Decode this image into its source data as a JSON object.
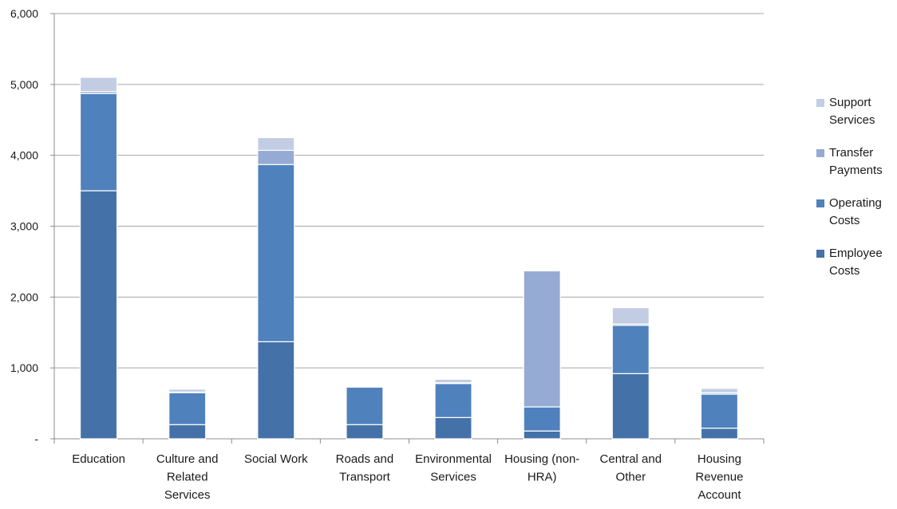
{
  "chart_data": {
    "type": "bar",
    "stacked": true,
    "categories": [
      "Education",
      "Culture and Related Services",
      "Social Work",
      "Roads and Transport",
      "Environmental Services",
      "Housing (non-HRA)",
      "Central and Other",
      "Housing Revenue Account"
    ],
    "category_lines": [
      [
        "Education"
      ],
      [
        "Culture and",
        "Related",
        "Services"
      ],
      [
        "Social Work"
      ],
      [
        "Roads and",
        "Transport"
      ],
      [
        "Environmental",
        "Services"
      ],
      [
        "Housing (non-",
        "HRA)"
      ],
      [
        "Central and",
        "Other"
      ],
      [
        "Housing",
        "Revenue",
        "Account"
      ]
    ],
    "series": [
      {
        "name": "Employee Costs",
        "color": "#4472a8",
        "values": [
          3500,
          200,
          1370,
          200,
          300,
          110,
          920,
          150
        ]
      },
      {
        "name": "Operating Costs",
        "color": "#4f81bd",
        "values": [
          1370,
          450,
          2500,
          530,
          480,
          340,
          680,
          480
        ]
      },
      {
        "name": "Transfer Payments",
        "color": "#95abd3",
        "values": [
          30,
          10,
          200,
          10,
          10,
          1920,
          20,
          20
        ]
      },
      {
        "name": "Support Services",
        "color": "#c2cde4",
        "values": [
          200,
          40,
          180,
          10,
          50,
          10,
          230,
          60
        ]
      }
    ],
    "legend_order": [
      "Support Services",
      "Transfer Payments",
      "Operating Costs",
      "Employee Costs"
    ],
    "legend_lines": {
      "Support Services": [
        "Support",
        "Services"
      ],
      "Transfer Payments": [
        "Transfer",
        "Payments"
      ],
      "Operating Costs": [
        "Operating",
        "Costs"
      ],
      "Employee Costs": [
        "Employee",
        "Costs"
      ]
    },
    "y_ticks": [
      "-",
      "1,000",
      "2,000",
      "3,000",
      "4,000",
      "5,000",
      "6,000"
    ],
    "ylim": [
      0,
      6000
    ],
    "grid": true,
    "legend_position": "right",
    "title": "",
    "xlabel": "",
    "ylabel": ""
  }
}
